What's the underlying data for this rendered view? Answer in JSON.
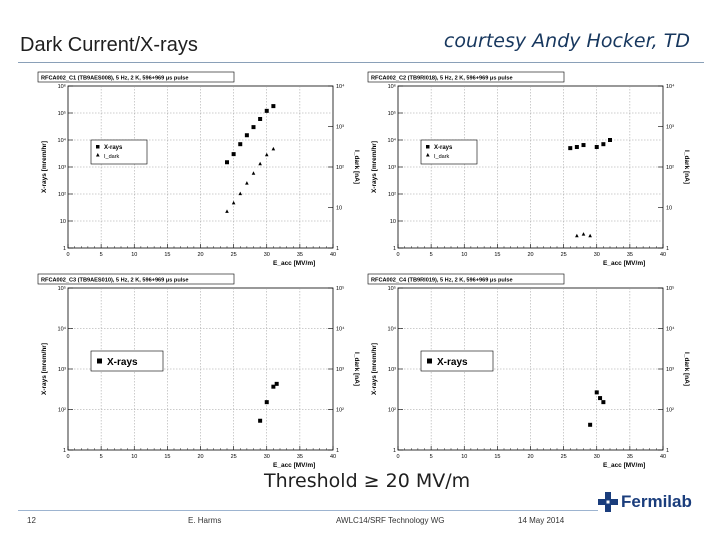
{
  "slide": {
    "title": "Dark Current/X-rays",
    "courtesy": "courtesy Andy Hocker, TD",
    "threshold_note": "Threshold ≥ 20 MV/m"
  },
  "footer": {
    "page_number": "12",
    "author": "E. Harms",
    "event": "AWLC14/SRF Technology WG",
    "date": "14 May 2014",
    "logo_text": "Fermilab"
  },
  "colors": {
    "accent": "#17375e",
    "grid": "#999999",
    "logo": "#1a3d7c"
  },
  "chart_data": [
    {
      "type": "scatter",
      "title": "RFCA002_C1 (TB9AES008), 5 Hz, 2 K, 596+969 μs pulse",
      "xlabel": "E_acc [MV/m]",
      "ylabel": "X-rays [mrem/hr]",
      "y2label": "I_dark [nA]",
      "xlim": [
        0,
        40
      ],
      "ylim": [
        1,
        1000000
      ],
      "y2lim": [
        1,
        10000
      ],
      "log_y": true,
      "x_ticks": [
        "0",
        "5",
        "10",
        "15",
        "20",
        "25",
        "30",
        "35",
        "40"
      ],
      "y_ticks": [
        "1",
        "10",
        "10²",
        "10³",
        "10⁴",
        "10⁵",
        "10⁶"
      ],
      "y2_ticks": [
        "1",
        "10",
        "10²",
        "10³",
        "10⁴"
      ],
      "legend_position": "middle-left",
      "legend": [
        "X-rays",
        "I_dark"
      ],
      "series": [
        {
          "name": "X-rays",
          "marker": "square",
          "x": [
            24,
            25,
            26,
            27,
            28,
            29,
            30,
            31
          ],
          "y": [
            1500,
            3000,
            7000,
            15000,
            30000,
            60000,
            120000,
            180000
          ]
        },
        {
          "name": "I_dark",
          "marker": "triangle",
          "x": [
            24,
            25,
            26,
            27,
            28,
            29,
            30,
            31
          ],
          "y2": [
            8,
            13,
            22,
            40,
            70,
            120,
            200,
            280
          ]
        }
      ]
    },
    {
      "type": "scatter",
      "title": "RFCA002_C2 (TB9RI018), 5 Hz, 2 K, 596+969 μs pulse",
      "xlabel": "E_acc [MV/m]",
      "ylabel": "X-rays [mrem/hr]",
      "y2label": "I_dark [nA]",
      "xlim": [
        0,
        40
      ],
      "ylim": [
        1,
        1000000
      ],
      "y2lim": [
        1,
        10000
      ],
      "log_y": true,
      "x_ticks": [
        "0",
        "5",
        "10",
        "15",
        "20",
        "25",
        "30",
        "35",
        "40"
      ],
      "y_ticks": [
        "1",
        "10",
        "10²",
        "10³",
        "10⁴",
        "10⁵",
        "10⁶"
      ],
      "y2_ticks": [
        "1",
        "10",
        "10²",
        "10³",
        "10⁴"
      ],
      "legend_position": "middle-left",
      "legend": [
        "X-rays",
        "I_dark"
      ],
      "series": [
        {
          "name": "X-rays",
          "marker": "square",
          "x": [
            26,
            27,
            28,
            30,
            31,
            32
          ],
          "y": [
            5000,
            5500,
            6500,
            5500,
            7000,
            10000
          ]
        },
        {
          "name": "I_dark",
          "marker": "triangle",
          "x": [
            27,
            28,
            29
          ],
          "y2": [
            2,
            2.2,
            2
          ]
        }
      ]
    },
    {
      "type": "scatter",
      "title": "RFCA002_C3 (TB9AES010), 5 Hz, 2 K, 596+969 μs pulse",
      "xlabel": "E_acc [MV/m]",
      "ylabel": "X-rays [mrem/hr]",
      "y2label": "I_dark [nA]",
      "xlim": [
        0,
        40
      ],
      "ylim": [
        1,
        100000
      ],
      "y2lim": [
        1,
        100000
      ],
      "log_y": true,
      "x_ticks": [
        "0",
        "5",
        "10",
        "15",
        "20",
        "25",
        "30",
        "35",
        "40"
      ],
      "y_ticks": [
        "1",
        "10²",
        "10³",
        "10⁴",
        "10⁵"
      ],
      "y2_ticks": [
        "1",
        "10²",
        "10³",
        "10⁴",
        "10⁵"
      ],
      "legend_position": "middle-left",
      "legend": [
        "X-rays"
      ],
      "series": [
        {
          "name": "X-rays",
          "marker": "square",
          "x": [
            29,
            30,
            31,
            31.5
          ],
          "y": [
            8,
            30,
            90,
            110
          ]
        }
      ]
    },
    {
      "type": "scatter",
      "title": "RFCA002_C4 (TB9RI019), 5 Hz, 2 K, 596+969 μs pulse",
      "xlabel": "E_acc [MV/m]",
      "ylabel": "X-rays [mrem/hr]",
      "y2label": "I_dark [nA]",
      "xlim": [
        0,
        40
      ],
      "ylim": [
        1,
        100000
      ],
      "y2lim": [
        1,
        100000
      ],
      "log_y": true,
      "x_ticks": [
        "0",
        "5",
        "10",
        "15",
        "20",
        "25",
        "30",
        "35",
        "40"
      ],
      "y_ticks": [
        "1",
        "10²",
        "10³",
        "10⁴",
        "10⁵"
      ],
      "y2_ticks": [
        "1",
        "10²",
        "10³",
        "10⁴",
        "10⁵"
      ],
      "legend_position": "middle-left",
      "legend": [
        "X-rays"
      ],
      "series": [
        {
          "name": "X-rays",
          "marker": "square",
          "x": [
            29,
            30,
            30.5,
            31
          ],
          "y": [
            6,
            60,
            40,
            30
          ]
        }
      ]
    }
  ]
}
